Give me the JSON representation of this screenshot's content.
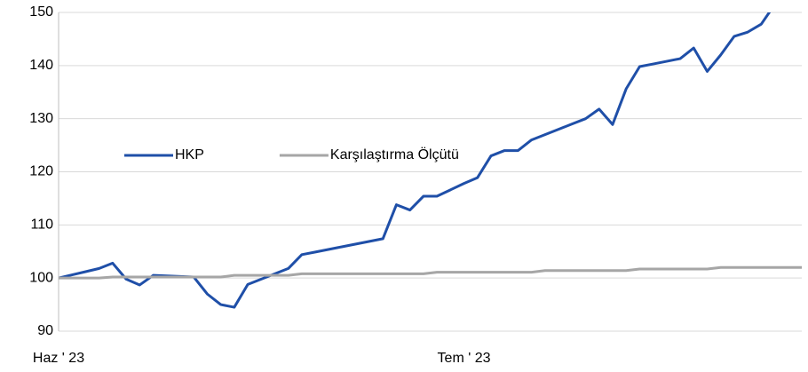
{
  "chart_data": {
    "type": "line",
    "categories": [
      "Haz ' 23",
      null,
      null,
      null,
      null,
      null,
      null,
      null,
      null,
      null,
      null,
      null,
      null,
      null,
      null,
      null,
      null,
      null,
      null,
      null,
      null,
      null,
      null,
      null,
      null,
      null,
      null,
      null,
      null,
      null,
      "Tem ' 23",
      null,
      null,
      null,
      null,
      null,
      null,
      null,
      null,
      null,
      null,
      null,
      null,
      null,
      null,
      null,
      null,
      null,
      null,
      null,
      null,
      null,
      null,
      null,
      null,
      null
    ],
    "series": [
      {
        "name": "HKP",
        "color": "#1f4fa8",
        "values": [
          100,
          100.6,
          101.2,
          101.8,
          102.8,
          99.8,
          98.7,
          100.5,
          100.4,
          100.3,
          100.2,
          97,
          95,
          94.5,
          98.8,
          99.8,
          100.8,
          101.8,
          104.4,
          104.9,
          105.4,
          105.9,
          106.4,
          106.9,
          107.4,
          113.8,
          112.8,
          115.4,
          115.4,
          116.6,
          117.8,
          118.9,
          123,
          124,
          124,
          126,
          127,
          128,
          129,
          130,
          131.8,
          128.9,
          135.6,
          139.8,
          140.3,
          140.8,
          141.3,
          143.3,
          138.9,
          142,
          145.5,
          146.3,
          147.8,
          151.5,
          null,
          null
        ]
      },
      {
        "name": "Karşılaştırma Ölçütü",
        "color": "#a6a6a6",
        "values": [
          100,
          100,
          100,
          100,
          100.2,
          100.2,
          100.2,
          100.2,
          100.2,
          100.2,
          100.2,
          100.2,
          100.2,
          100.5,
          100.5,
          100.5,
          100.5,
          100.5,
          100.8,
          100.8,
          100.8,
          100.8,
          100.8,
          100.8,
          100.8,
          100.8,
          100.8,
          100.8,
          101.1,
          101.1,
          101.1,
          101.1,
          101.1,
          101.1,
          101.1,
          101.1,
          101.4,
          101.4,
          101.4,
          101.4,
          101.4,
          101.4,
          101.4,
          101.7,
          101.7,
          101.7,
          101.7,
          101.7,
          101.7,
          102,
          102,
          102,
          102,
          102,
          102,
          102
        ]
      }
    ],
    "ylim": [
      90,
      150
    ],
    "yticks": [
      90,
      100,
      110,
      120,
      130,
      140,
      150
    ],
    "grid": true,
    "legend": "center-left"
  }
}
